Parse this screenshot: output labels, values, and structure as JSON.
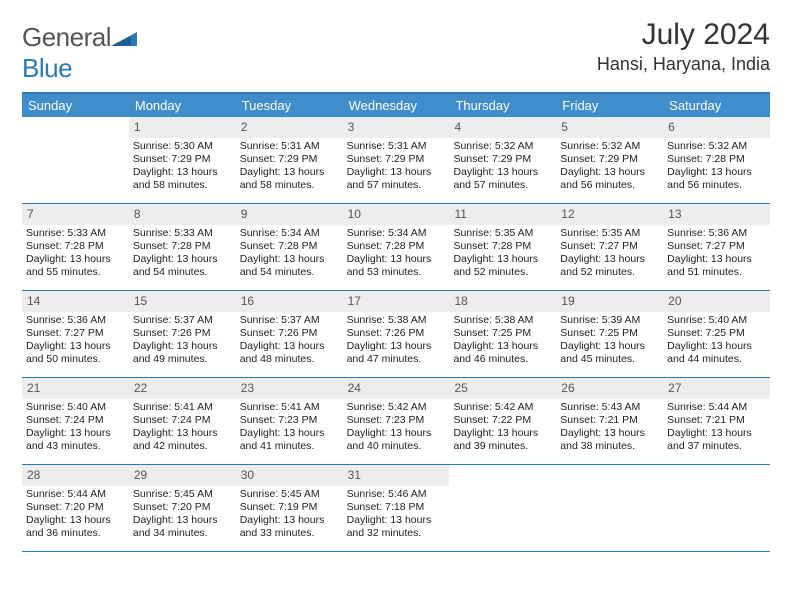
{
  "logo": {
    "word1": "General",
    "word2": "Blue"
  },
  "title": "July 2024",
  "location": "Hansi, Haryana, India",
  "colors": {
    "header_bg": "#3f8ecb",
    "accent_border": "#2b7ab8",
    "daynum_bg": "#ebedef",
    "text": "#222222",
    "logo_gray": "#555555",
    "logo_blue": "#2b7ab8"
  },
  "day_names": [
    "Sunday",
    "Monday",
    "Tuesday",
    "Wednesday",
    "Thursday",
    "Friday",
    "Saturday"
  ],
  "weeks": [
    [
      {
        "n": "",
        "sr": "",
        "ss": "",
        "dl": ""
      },
      {
        "n": "1",
        "sr": "Sunrise: 5:30 AM",
        "ss": "Sunset: 7:29 PM",
        "dl": "Daylight: 13 hours and 58 minutes."
      },
      {
        "n": "2",
        "sr": "Sunrise: 5:31 AM",
        "ss": "Sunset: 7:29 PM",
        "dl": "Daylight: 13 hours and 58 minutes."
      },
      {
        "n": "3",
        "sr": "Sunrise: 5:31 AM",
        "ss": "Sunset: 7:29 PM",
        "dl": "Daylight: 13 hours and 57 minutes."
      },
      {
        "n": "4",
        "sr": "Sunrise: 5:32 AM",
        "ss": "Sunset: 7:29 PM",
        "dl": "Daylight: 13 hours and 57 minutes."
      },
      {
        "n": "5",
        "sr": "Sunrise: 5:32 AM",
        "ss": "Sunset: 7:29 PM",
        "dl": "Daylight: 13 hours and 56 minutes."
      },
      {
        "n": "6",
        "sr": "Sunrise: 5:32 AM",
        "ss": "Sunset: 7:28 PM",
        "dl": "Daylight: 13 hours and 56 minutes."
      }
    ],
    [
      {
        "n": "7",
        "sr": "Sunrise: 5:33 AM",
        "ss": "Sunset: 7:28 PM",
        "dl": "Daylight: 13 hours and 55 minutes."
      },
      {
        "n": "8",
        "sr": "Sunrise: 5:33 AM",
        "ss": "Sunset: 7:28 PM",
        "dl": "Daylight: 13 hours and 54 minutes."
      },
      {
        "n": "9",
        "sr": "Sunrise: 5:34 AM",
        "ss": "Sunset: 7:28 PM",
        "dl": "Daylight: 13 hours and 54 minutes."
      },
      {
        "n": "10",
        "sr": "Sunrise: 5:34 AM",
        "ss": "Sunset: 7:28 PM",
        "dl": "Daylight: 13 hours and 53 minutes."
      },
      {
        "n": "11",
        "sr": "Sunrise: 5:35 AM",
        "ss": "Sunset: 7:28 PM",
        "dl": "Daylight: 13 hours and 52 minutes."
      },
      {
        "n": "12",
        "sr": "Sunrise: 5:35 AM",
        "ss": "Sunset: 7:27 PM",
        "dl": "Daylight: 13 hours and 52 minutes."
      },
      {
        "n": "13",
        "sr": "Sunrise: 5:36 AM",
        "ss": "Sunset: 7:27 PM",
        "dl": "Daylight: 13 hours and 51 minutes."
      }
    ],
    [
      {
        "n": "14",
        "sr": "Sunrise: 5:36 AM",
        "ss": "Sunset: 7:27 PM",
        "dl": "Daylight: 13 hours and 50 minutes."
      },
      {
        "n": "15",
        "sr": "Sunrise: 5:37 AM",
        "ss": "Sunset: 7:26 PM",
        "dl": "Daylight: 13 hours and 49 minutes."
      },
      {
        "n": "16",
        "sr": "Sunrise: 5:37 AM",
        "ss": "Sunset: 7:26 PM",
        "dl": "Daylight: 13 hours and 48 minutes."
      },
      {
        "n": "17",
        "sr": "Sunrise: 5:38 AM",
        "ss": "Sunset: 7:26 PM",
        "dl": "Daylight: 13 hours and 47 minutes."
      },
      {
        "n": "18",
        "sr": "Sunrise: 5:38 AM",
        "ss": "Sunset: 7:25 PM",
        "dl": "Daylight: 13 hours and 46 minutes."
      },
      {
        "n": "19",
        "sr": "Sunrise: 5:39 AM",
        "ss": "Sunset: 7:25 PM",
        "dl": "Daylight: 13 hours and 45 minutes."
      },
      {
        "n": "20",
        "sr": "Sunrise: 5:40 AM",
        "ss": "Sunset: 7:25 PM",
        "dl": "Daylight: 13 hours and 44 minutes."
      }
    ],
    [
      {
        "n": "21",
        "sr": "Sunrise: 5:40 AM",
        "ss": "Sunset: 7:24 PM",
        "dl": "Daylight: 13 hours and 43 minutes."
      },
      {
        "n": "22",
        "sr": "Sunrise: 5:41 AM",
        "ss": "Sunset: 7:24 PM",
        "dl": "Daylight: 13 hours and 42 minutes."
      },
      {
        "n": "23",
        "sr": "Sunrise: 5:41 AM",
        "ss": "Sunset: 7:23 PM",
        "dl": "Daylight: 13 hours and 41 minutes."
      },
      {
        "n": "24",
        "sr": "Sunrise: 5:42 AM",
        "ss": "Sunset: 7:23 PM",
        "dl": "Daylight: 13 hours and 40 minutes."
      },
      {
        "n": "25",
        "sr": "Sunrise: 5:42 AM",
        "ss": "Sunset: 7:22 PM",
        "dl": "Daylight: 13 hours and 39 minutes."
      },
      {
        "n": "26",
        "sr": "Sunrise: 5:43 AM",
        "ss": "Sunset: 7:21 PM",
        "dl": "Daylight: 13 hours and 38 minutes."
      },
      {
        "n": "27",
        "sr": "Sunrise: 5:44 AM",
        "ss": "Sunset: 7:21 PM",
        "dl": "Daylight: 13 hours and 37 minutes."
      }
    ],
    [
      {
        "n": "28",
        "sr": "Sunrise: 5:44 AM",
        "ss": "Sunset: 7:20 PM",
        "dl": "Daylight: 13 hours and 36 minutes."
      },
      {
        "n": "29",
        "sr": "Sunrise: 5:45 AM",
        "ss": "Sunset: 7:20 PM",
        "dl": "Daylight: 13 hours and 34 minutes."
      },
      {
        "n": "30",
        "sr": "Sunrise: 5:45 AM",
        "ss": "Sunset: 7:19 PM",
        "dl": "Daylight: 13 hours and 33 minutes."
      },
      {
        "n": "31",
        "sr": "Sunrise: 5:46 AM",
        "ss": "Sunset: 7:18 PM",
        "dl": "Daylight: 13 hours and 32 minutes."
      },
      {
        "n": "",
        "sr": "",
        "ss": "",
        "dl": ""
      },
      {
        "n": "",
        "sr": "",
        "ss": "",
        "dl": ""
      },
      {
        "n": "",
        "sr": "",
        "ss": "",
        "dl": ""
      }
    ]
  ]
}
